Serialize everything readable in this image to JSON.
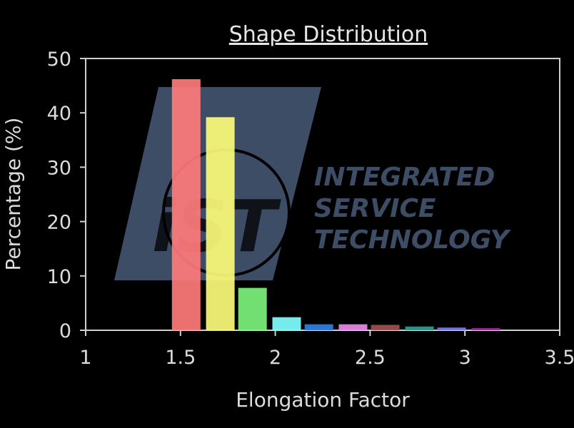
{
  "chart_data": {
    "type": "bar",
    "title": "Shape Distribution",
    "xlabel": "Elongation Factor",
    "ylabel": "Percentage (%)",
    "xlim": [
      1,
      3.5
    ],
    "ylim": [
      0,
      50
    ],
    "xticks": [
      "1",
      "1.5",
      "2",
      "2.5",
      "3",
      "3.5"
    ],
    "yticks": [
      "0",
      "10",
      "20",
      "30",
      "40",
      "50"
    ],
    "grid": false,
    "legend": "none",
    "bars": [
      {
        "x": 1.53,
        "value": 46.2,
        "color": "#ff7b7b"
      },
      {
        "x": 1.71,
        "value": 39.2,
        "color": "#fcfc7a"
      },
      {
        "x": 1.88,
        "value": 7.8,
        "color": "#7cf27c"
      },
      {
        "x": 2.06,
        "value": 2.4,
        "color": "#80ffff"
      },
      {
        "x": 2.23,
        "value": 1.1,
        "color": "#2f7fe8"
      },
      {
        "x": 2.41,
        "value": 1.1,
        "color": "#e98ae9"
      },
      {
        "x": 2.58,
        "value": 1.0,
        "color": "#a05050"
      },
      {
        "x": 2.76,
        "value": 0.7,
        "color": "#2f9e8c"
      },
      {
        "x": 2.93,
        "value": 0.5,
        "color": "#7a7aff"
      },
      {
        "x": 3.11,
        "value": 0.4,
        "color": "#9b2f9b"
      }
    ]
  },
  "watermark": {
    "logo_text": "iST",
    "lines": [
      "INTEGRATED",
      "SERVICE",
      "TECHNOLOGY"
    ],
    "color": "#3e4d66"
  }
}
